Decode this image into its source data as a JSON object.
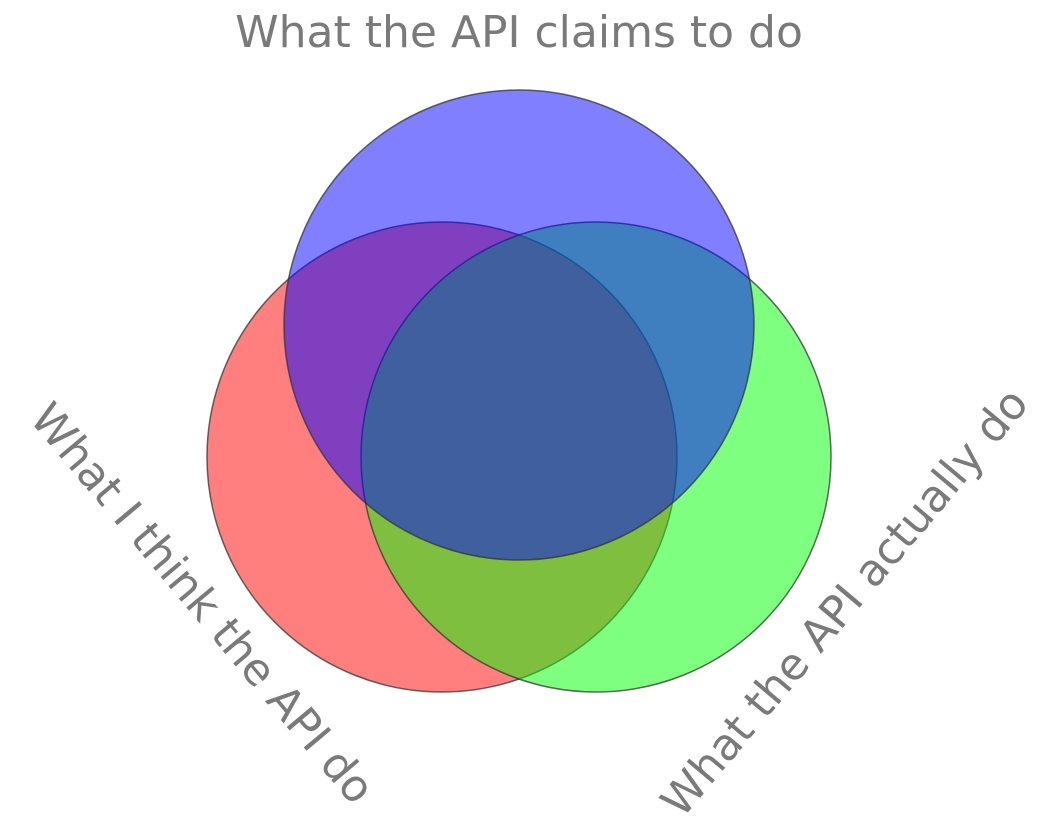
{
  "diagram": {
    "type": "venn-3",
    "sets": [
      {
        "key": "claims",
        "label": "What the API claims to do",
        "color": "#0000ff",
        "opacity": 0.5
      },
      {
        "key": "think",
        "label": "What I think the API do",
        "color": "#ff0000",
        "opacity": 0.5
      },
      {
        "key": "actual",
        "label": "What the API actually do",
        "color": "#00ff00",
        "opacity": 0.5
      }
    ]
  }
}
